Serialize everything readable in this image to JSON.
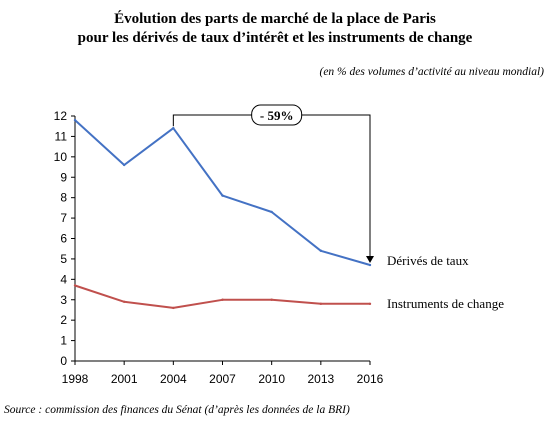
{
  "chart_data": {
    "type": "line",
    "title_line1": "Évolution des parts de marché de la place de Paris",
    "title_line2": "pour les dérivés de taux d’intérêt et les instruments de change",
    "subtitle": "(en % des volumes d’activité au niveau mondial)",
    "source": "Source : commission des finances du Sénat (d’après les données de la BRI)",
    "x": [
      "1998",
      "2001",
      "2004",
      "2007",
      "2010",
      "2013",
      "2016"
    ],
    "y_ticks": [
      "0",
      "1",
      "2",
      "3",
      "4",
      "5",
      "6",
      "7",
      "8",
      "9",
      "10",
      "11",
      "12"
    ],
    "ylim": [
      0,
      12
    ],
    "grid": false,
    "series": [
      {
        "name": "Dérivés de taux",
        "color": "#4472C4",
        "values": [
          11.8,
          9.6,
          11.4,
          8.1,
          7.3,
          5.4,
          4.7
        ]
      },
      {
        "name": "Instruments de change",
        "color": "#C0504D",
        "values": [
          3.7,
          2.9,
          2.6,
          3.0,
          3.0,
          2.8,
          2.8
        ]
      }
    ],
    "annotation": {
      "label": "- 59%",
      "from_x": "2004",
      "to_x": "2016"
    }
  }
}
